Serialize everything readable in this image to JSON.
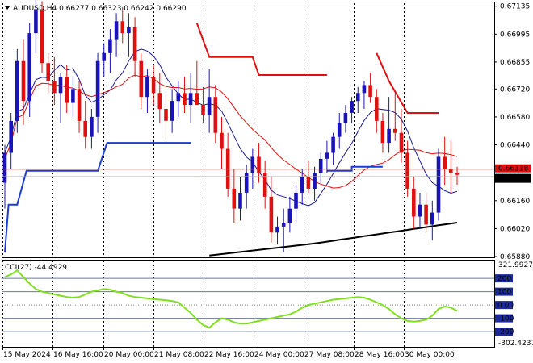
{
  "header": {
    "symbol_line": "AUDUSD,H4  0.66277 0.66323 0.66242 0.66290",
    "indicator_line": "CCI(27) -44.4929"
  },
  "colors": {
    "bull": "#1a14b8",
    "bear": "#e01010",
    "ma_fast": "#e01010",
    "ma_slow": "#1a1a90",
    "trail": "#1a3ccf",
    "trail_red": "#e01010",
    "ma_long": "#000000",
    "cci": "#80e020",
    "badge_blue": "#1a2a9a",
    "price_line": "#c05050"
  },
  "chart_data": [
    {
      "type": "candlestick",
      "symbol": "AUDUSD",
      "timeframe": "H4",
      "ohlc_current": {
        "open": 0.66277,
        "high": 0.66323,
        "low": 0.66242,
        "close": 0.6629
      },
      "y_ticks": [
        "0.67135",
        "0.66995",
        "0.66855",
        "0.66720",
        "0.66580",
        "0.66440",
        "0.66160",
        "0.66020",
        "0.65880"
      ],
      "price_ylim": [
        0.6588,
        0.6715
      ],
      "price_label": "0.66290",
      "price_label_top": "0.66318",
      "x_ticks": [
        "15 May 2024",
        "16 May 16:00",
        "20 May 00:00",
        "21 May 08:00",
        "22 May 16:00",
        "24 May 00:00",
        "27 May 08:00",
        "28 May 16:00",
        "30 May 00:00"
      ],
      "candles": [
        [
          0.6625,
          0.6644,
          0.6612,
          0.664
        ],
        [
          0.664,
          0.666,
          0.6632,
          0.6656
        ],
        [
          0.6656,
          0.6692,
          0.665,
          0.6686
        ],
        [
          0.6686,
          0.6697,
          0.6654,
          0.6666
        ],
        [
          0.6666,
          0.6705,
          0.6658,
          0.67
        ],
        [
          0.67,
          0.6718,
          0.669,
          0.6712
        ],
        [
          0.6712,
          0.6716,
          0.668,
          0.6685
        ],
        [
          0.6685,
          0.669,
          0.667,
          0.6676
        ],
        [
          0.6676,
          0.6688,
          0.6664,
          0.667
        ],
        [
          0.667,
          0.668,
          0.6655,
          0.6678
        ],
        [
          0.6678,
          0.6684,
          0.666,
          0.6665
        ],
        [
          0.6665,
          0.6678,
          0.6658,
          0.6672
        ],
        [
          0.6672,
          0.6676,
          0.665,
          0.6656
        ],
        [
          0.6656,
          0.6666,
          0.6642,
          0.6648
        ],
        [
          0.6648,
          0.6662,
          0.6642,
          0.6658
        ],
        [
          0.6658,
          0.669,
          0.665,
          0.6686
        ],
        [
          0.6686,
          0.6695,
          0.6678,
          0.669
        ],
        [
          0.669,
          0.6702,
          0.668,
          0.6697
        ],
        [
          0.6697,
          0.671,
          0.6688,
          0.6706
        ],
        [
          0.6706,
          0.6713,
          0.6695,
          0.67
        ],
        [
          0.67,
          0.671,
          0.6688,
          0.6703
        ],
        [
          0.6703,
          0.6708,
          0.6678,
          0.6686
        ],
        [
          0.6686,
          0.669,
          0.6662,
          0.6668
        ],
        [
          0.6668,
          0.6682,
          0.666,
          0.6678
        ],
        [
          0.6678,
          0.6684,
          0.6664,
          0.667
        ],
        [
          0.667,
          0.668,
          0.6655,
          0.6662
        ],
        [
          0.6662,
          0.667,
          0.6648,
          0.6656
        ],
        [
          0.6656,
          0.6672,
          0.665,
          0.6666
        ],
        [
          0.6666,
          0.6676,
          0.6658,
          0.667
        ],
        [
          0.667,
          0.6678,
          0.666,
          0.6664
        ],
        [
          0.6664,
          0.668,
          0.6655,
          0.667
        ],
        [
          0.667,
          0.6686,
          0.6665,
          0.6664
        ],
        [
          0.6664,
          0.6673,
          0.6655,
          0.6659
        ],
        [
          0.6659,
          0.6682,
          0.665,
          0.6668
        ],
        [
          0.6668,
          0.6674,
          0.6645,
          0.665
        ],
        [
          0.665,
          0.6658,
          0.6632,
          0.6642
        ],
        [
          0.6642,
          0.665,
          0.6618,
          0.6622
        ],
        [
          0.6622,
          0.6632,
          0.6605,
          0.6612
        ],
        [
          0.6612,
          0.6628,
          0.6606,
          0.662
        ],
        [
          0.662,
          0.6634,
          0.6612,
          0.663
        ],
        [
          0.663,
          0.6642,
          0.6622,
          0.6638
        ],
        [
          0.6638,
          0.6645,
          0.6625,
          0.663
        ],
        [
          0.663,
          0.6636,
          0.6612,
          0.6618
        ],
        [
          0.6618,
          0.6628,
          0.6595,
          0.66
        ],
        [
          0.66,
          0.6608,
          0.6594,
          0.6603
        ],
        [
          0.6603,
          0.6612,
          0.659,
          0.6605
        ],
        [
          0.6605,
          0.6618,
          0.66,
          0.6612
        ],
        [
          0.6612,
          0.6624,
          0.6605,
          0.662
        ],
        [
          0.662,
          0.6632,
          0.6614,
          0.6628
        ],
        [
          0.6628,
          0.6636,
          0.662,
          0.6622
        ],
        [
          0.6622,
          0.6633,
          0.6616,
          0.663
        ],
        [
          0.663,
          0.664,
          0.6625,
          0.6637
        ],
        [
          0.6637,
          0.6646,
          0.663,
          0.664
        ],
        [
          0.664,
          0.665,
          0.6634,
          0.6648
        ],
        [
          0.6648,
          0.666,
          0.6642,
          0.6655
        ],
        [
          0.6655,
          0.6664,
          0.665,
          0.666
        ],
        [
          0.666,
          0.6668,
          0.6655,
          0.6666
        ],
        [
          0.6666,
          0.6673,
          0.666,
          0.667
        ],
        [
          0.667,
          0.6676,
          0.6662,
          0.6674
        ],
        [
          0.6674,
          0.668,
          0.6665,
          0.6668
        ],
        [
          0.6668,
          0.6672,
          0.665,
          0.6656
        ],
        [
          0.6656,
          0.666,
          0.664,
          0.6645
        ],
        [
          0.6645,
          0.6668,
          0.664,
          0.6652
        ],
        [
          0.6652,
          0.667,
          0.6646,
          0.665
        ],
        [
          0.665,
          0.6662,
          0.6635,
          0.664
        ],
        [
          0.664,
          0.6646,
          0.6618,
          0.6622
        ],
        [
          0.6622,
          0.6628,
          0.6602,
          0.6608
        ],
        [
          0.6608,
          0.662,
          0.6602,
          0.6614
        ],
        [
          0.6614,
          0.662,
          0.66,
          0.6604
        ],
        [
          0.6604,
          0.6616,
          0.6596,
          0.661
        ],
        [
          0.661,
          0.6642,
          0.6606,
          0.6638
        ],
        [
          0.6638,
          0.6648,
          0.6624,
          0.6632
        ],
        [
          0.6632,
          0.6646,
          0.662,
          0.663
        ],
        [
          0.663,
          0.6633,
          0.6624,
          0.6629
        ]
      ],
      "indicator": {
        "name": "CCI(27)",
        "value": -44.4929,
        "ylim": [
          -302.4237,
          321.9927
        ],
        "y_ticks_top": "321.9927",
        "y_ticks_bottom": "-302.4237",
        "levels": [
          200,
          100,
          0,
          -100,
          -200
        ],
        "level_labels": [
          "200",
          "100",
          "0.00",
          "-100",
          "-200"
        ],
        "values": [
          210,
          230,
          260,
          210,
          160,
          120,
          100,
          90,
          80,
          70,
          60,
          55,
          60,
          80,
          100,
          110,
          120,
          115,
          100,
          90,
          70,
          60,
          55,
          50,
          45,
          40,
          35,
          30,
          20,
          -20,
          -60,
          -110,
          -150,
          -170,
          -130,
          -100,
          -110,
          -130,
          -140,
          -140,
          -130,
          -120,
          -110,
          -100,
          -90,
          -80,
          -70,
          -50,
          -20,
          0,
          10,
          20,
          30,
          40,
          45,
          50,
          55,
          60,
          55,
          40,
          20,
          0,
          -30,
          -70,
          -100,
          -120,
          -125,
          -120,
          -110,
          -80,
          -30,
          -10,
          -20,
          -44
        ]
      }
    }
  ]
}
